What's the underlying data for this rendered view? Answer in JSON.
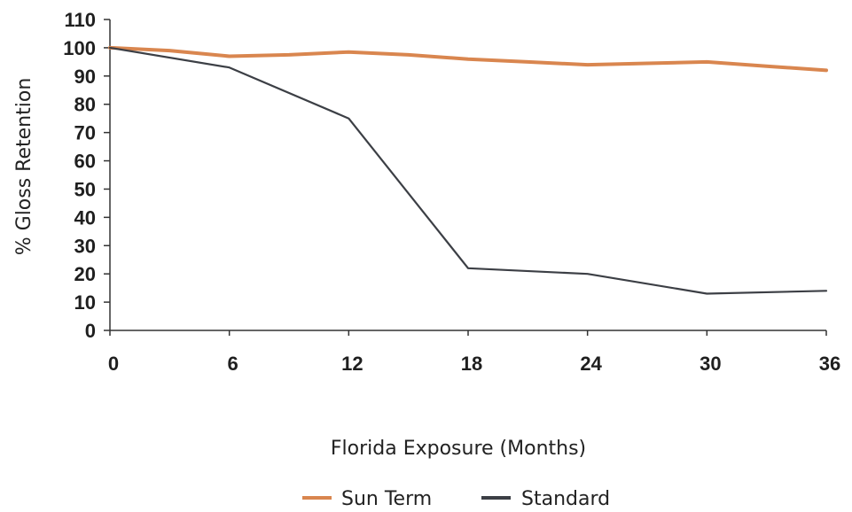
{
  "chart_data": {
    "type": "line",
    "title": "",
    "xlabel": "Florida Exposure (Months)",
    "ylabel": "% Gloss Retention",
    "x": [
      0,
      6,
      12,
      18,
      24,
      30,
      36
    ],
    "xlim": [
      0,
      36
    ],
    "ylim": [
      0,
      110
    ],
    "x_ticks": [
      "0",
      "6",
      "12",
      "18",
      "24",
      "30",
      "36"
    ],
    "y_ticks": [
      "0",
      "10",
      "20",
      "30",
      "40",
      "50",
      "60",
      "70",
      "80",
      "90",
      "100",
      "110"
    ],
    "grid": false,
    "legend_position": "bottom-center",
    "series": [
      {
        "name": "Sun Term",
        "color": "#d9864f",
        "x": [
          0,
          3,
          6,
          9,
          12,
          15,
          18,
          21,
          24,
          27,
          30,
          33,
          36
        ],
        "values": [
          100,
          99,
          97,
          97.5,
          98.5,
          97.5,
          96,
          95,
          94,
          94.5,
          95,
          93.5,
          92
        ]
      },
      {
        "name": "Standard",
        "color": "#3c3f45",
        "x": [
          0,
          6,
          12,
          18,
          24,
          30,
          36
        ],
        "values": [
          100,
          93,
          75,
          22,
          20,
          13,
          14
        ]
      }
    ]
  }
}
